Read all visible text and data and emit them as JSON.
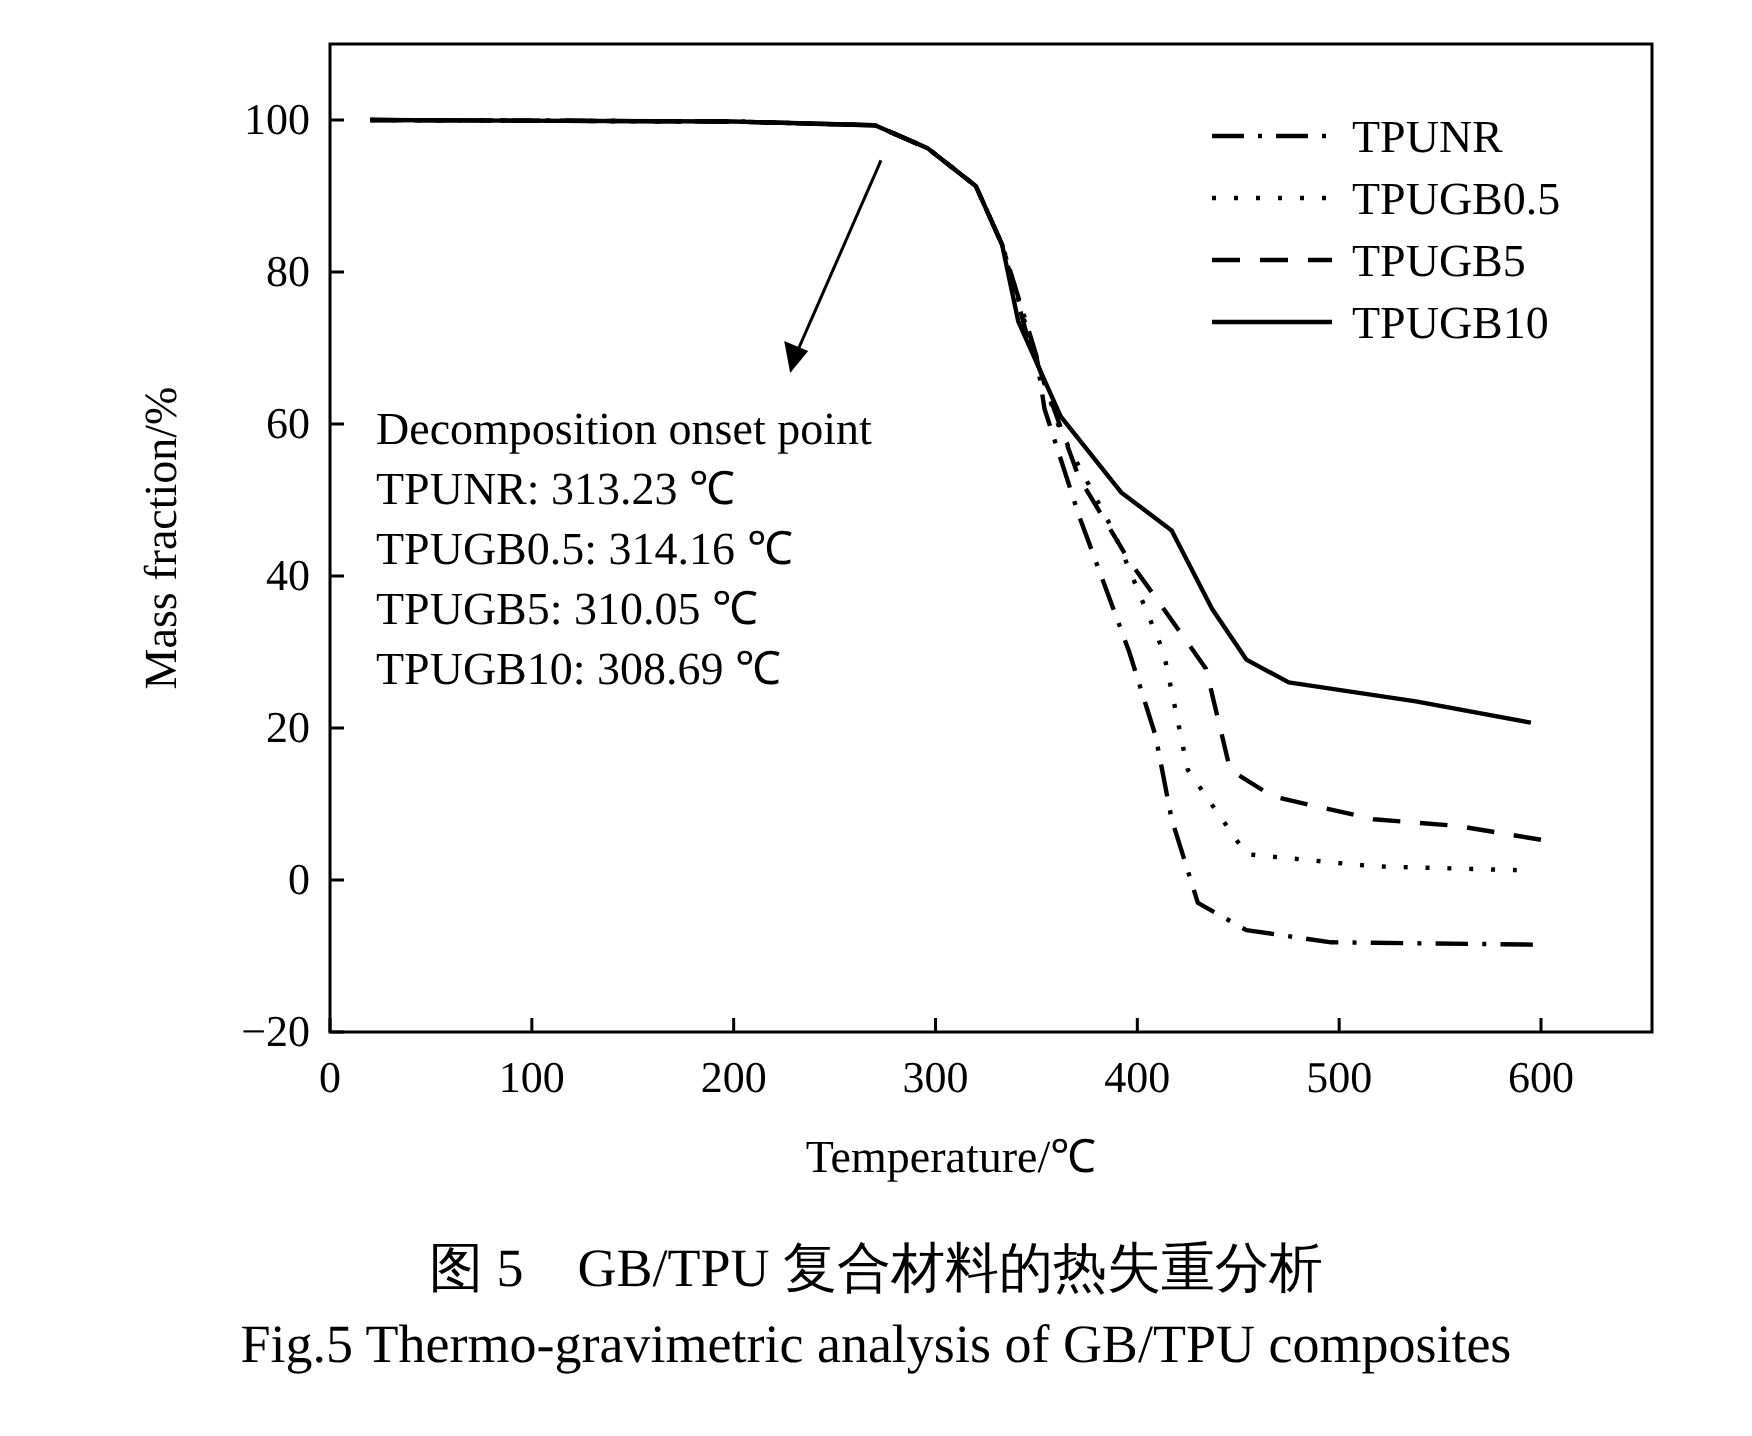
{
  "chart_data": {
    "type": "line",
    "xlabel": "Temperature/℃",
    "ylabel": "Mass fraction/%",
    "xlim": [
      0,
      655
    ],
    "ylim": [
      -20,
      110
    ],
    "xticks": [
      0,
      100,
      200,
      300,
      400,
      500,
      600
    ],
    "yticks": [
      -20,
      0,
      20,
      40,
      60,
      80,
      100
    ],
    "grid": false,
    "legend": "top right",
    "marker": "none",
    "annotations": [
      "Decomposition onset point",
      "TPUNR: 313.23 ℃",
      "TPUGB0.5: 314.16 ℃",
      "TPUGB5: 310.05 ℃",
      "TPUGB10: 308.69 ℃",
      "图 5　GB/TPU 复合材料的热失重分析",
      "Fig.5 Thermo-gravimetric analysis of GB/TPU composites"
    ],
    "series": [
      {
        "name": "TPUNR",
        "color": "#000000",
        "line_style": "dashdot",
        "x": [
          20,
          200,
          270,
          296,
          320,
          333,
          350,
          354,
          371,
          396,
          409,
          417,
          430,
          454,
          496,
          596
        ],
        "values": [
          100,
          99.8,
          99.3,
          96.3,
          91.3,
          83.6,
          69,
          62,
          48,
          30,
          19,
          8,
          -3,
          -6.6,
          -8.2,
          -8.5
        ]
      },
      {
        "name": "TPUGB0.5",
        "color": "#000000",
        "line_style": "dotted",
        "x": [
          20,
          200,
          270,
          296,
          320,
          333,
          348,
          362,
          388,
          413,
          425,
          454,
          517,
          588
        ],
        "values": [
          100,
          99.8,
          99.3,
          96.3,
          91.3,
          83.6,
          70,
          59,
          46,
          30,
          14.5,
          3.4,
          1.8,
          1.3
        ]
      },
      {
        "name": "TPUGB5",
        "color": "#000000",
        "line_style": "dashed",
        "x": [
          20,
          200,
          270,
          296,
          320,
          333,
          345,
          371,
          396,
          413,
          434,
          446,
          467,
          517,
          559,
          600
        ],
        "values": [
          100,
          99.8,
          99.3,
          96.3,
          91.3,
          83.6,
          72,
          53,
          42,
          35.7,
          27.8,
          14.5,
          11,
          8,
          7.1,
          5.3
        ]
      },
      {
        "name": "TPUGB10",
        "color": "#000000",
        "line_style": "solid",
        "x": [
          20,
          200,
          270,
          296,
          320,
          333,
          341,
          362,
          392,
          417,
          437,
          454,
          475,
          538,
          595
        ],
        "values": [
          100,
          99.8,
          99.3,
          96.3,
          91.3,
          83.6,
          73.5,
          61,
          51,
          46,
          35.7,
          29,
          26,
          23.5,
          20.7
        ]
      }
    ]
  }
}
